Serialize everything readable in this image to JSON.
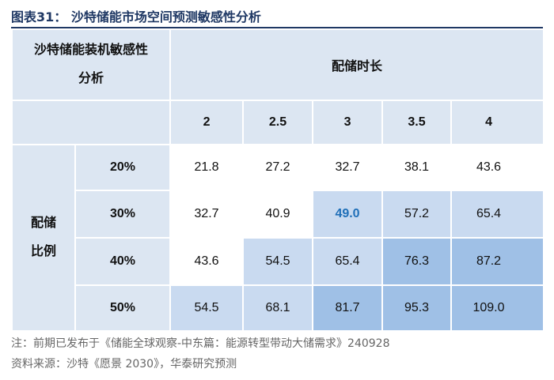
{
  "title": "图表31：  沙特储能市场空间预测敏感性分析",
  "table": {
    "corner_line1": "沙特储能装机敏感性",
    "corner_line2": "分析",
    "col_group_label": "配储时长",
    "col_headers": [
      "2",
      "2.5",
      "3",
      "3.5",
      "4"
    ],
    "row_group_line1": "配储",
    "row_group_line2": "比例",
    "rows": [
      {
        "label": "20%",
        "values": [
          "21.8",
          "27.2",
          "32.7",
          "38.1",
          "43.6"
        ]
      },
      {
        "label": "30%",
        "values": [
          "32.7",
          "40.9",
          "49.0",
          "57.2",
          "65.4"
        ]
      },
      {
        "label": "40%",
        "values": [
          "43.6",
          "54.5",
          "65.4",
          "76.3",
          "87.2"
        ]
      },
      {
        "label": "50%",
        "values": [
          "54.5",
          "68.1",
          "81.7",
          "95.3",
          "109.0"
        ]
      }
    ],
    "cell_shades": [
      [
        "#ffffff",
        "#ffffff",
        "#ffffff",
        "#ffffff",
        "#ffffff"
      ],
      [
        "#ffffff",
        "#ffffff",
        "#c9daf0",
        "#c9daf0",
        "#c9daf0"
      ],
      [
        "#ffffff",
        "#c9daf0",
        "#c9daf0",
        "#9fc0e6",
        "#9fc0e6"
      ],
      [
        "#c9daf0",
        "#c9daf0",
        "#9fc0e6",
        "#9fc0e6",
        "#9fc0e6"
      ]
    ],
    "header_bg": "#dce6f2",
    "highlight_color": "#1f6fb8"
  },
  "notes": {
    "note": "注：前期已发布于《储能全球观察-中东篇：能源转型带动大储需求》240928",
    "source": "资料来源：沙特《愿景 2030》，华泰研究预测"
  }
}
